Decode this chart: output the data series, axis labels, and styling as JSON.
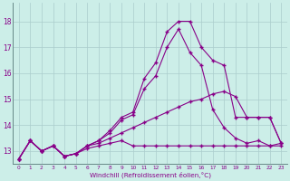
{
  "background_color": "#cceee8",
  "grid_color": "#aacccc",
  "line_color": "#880088",
  "xlabel": "Windchill (Refroidissement éolien,°C)",
  "yticks": [
    13,
    14,
    15,
    16,
    17,
    18
  ],
  "xticks": [
    0,
    1,
    2,
    3,
    4,
    5,
    6,
    7,
    8,
    9,
    10,
    11,
    12,
    13,
    14,
    15,
    16,
    17,
    18,
    19,
    20,
    21,
    22,
    23
  ],
  "ylim": [
    12.5,
    18.7
  ],
  "xlim": [
    -0.5,
    23.5
  ],
  "series": [
    {
      "x": [
        0,
        1,
        2,
        3,
        4,
        5,
        6,
        7,
        8,
        9,
        10,
        11,
        12,
        13,
        14,
        15,
        16,
        17,
        18,
        19,
        20,
        21,
        22,
        23
      ],
      "y": [
        12.7,
        13.4,
        13.0,
        13.2,
        12.8,
        12.9,
        13.1,
        13.2,
        13.3,
        13.4,
        13.2,
        13.2,
        13.2,
        13.2,
        13.2,
        13.2,
        13.2,
        13.2,
        13.2,
        13.2,
        13.2,
        13.2,
        13.2,
        13.3
      ]
    },
    {
      "x": [
        0,
        1,
        2,
        3,
        4,
        5,
        6,
        7,
        8,
        9,
        10,
        11,
        12,
        13,
        14,
        15,
        16,
        17,
        18,
        19,
        20,
        21,
        22,
        23
      ],
      "y": [
        12.7,
        13.4,
        13.0,
        13.2,
        12.8,
        12.9,
        13.2,
        13.3,
        13.5,
        13.7,
        13.9,
        14.1,
        14.3,
        14.5,
        14.7,
        14.9,
        15.0,
        15.2,
        15.3,
        15.1,
        14.3,
        14.3,
        14.3,
        13.3
      ]
    },
    {
      "x": [
        0,
        1,
        2,
        3,
        4,
        5,
        6,
        7,
        8,
        9,
        10,
        11,
        12,
        13,
        14,
        15,
        16,
        17,
        18,
        19,
        20,
        21,
        22,
        23
      ],
      "y": [
        12.7,
        13.4,
        13.0,
        13.2,
        12.8,
        12.9,
        13.2,
        13.4,
        13.8,
        14.3,
        14.5,
        15.8,
        16.4,
        17.6,
        18.0,
        18.0,
        17.0,
        16.5,
        16.3,
        14.3,
        14.3,
        14.3,
        14.3,
        13.3
      ]
    },
    {
      "x": [
        0,
        1,
        2,
        3,
        4,
        5,
        6,
        7,
        8,
        9,
        10,
        11,
        12,
        13,
        14,
        15,
        16,
        17,
        18,
        19,
        20,
        21,
        22,
        23
      ],
      "y": [
        12.7,
        13.4,
        13.0,
        13.2,
        12.8,
        12.9,
        13.2,
        13.4,
        13.7,
        14.2,
        14.4,
        15.4,
        15.9,
        17.0,
        17.7,
        16.8,
        16.3,
        14.6,
        13.9,
        13.5,
        13.3,
        13.4,
        13.2,
        13.2
      ]
    }
  ]
}
